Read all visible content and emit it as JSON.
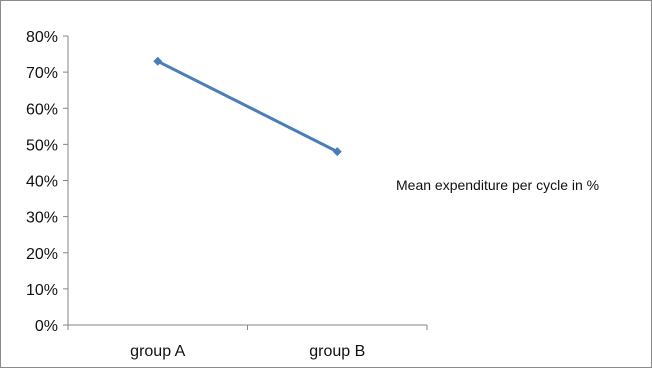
{
  "chart_data": {
    "type": "line",
    "categories": [
      "group A",
      "group B"
    ],
    "series": [
      {
        "name": "Mean expenditure per cycle in %",
        "values": [
          73,
          48
        ]
      }
    ],
    "ylim": [
      0,
      80
    ],
    "yticks": [
      "0%",
      "10%",
      "20%",
      "30%",
      "40%",
      "50%",
      "60%",
      "70%",
      "80%"
    ],
    "ytick_values": [
      0,
      10,
      20,
      30,
      40,
      50,
      60,
      70,
      80
    ],
    "legend_position": "right",
    "grid": false,
    "line_color": "#4a7ebb"
  }
}
